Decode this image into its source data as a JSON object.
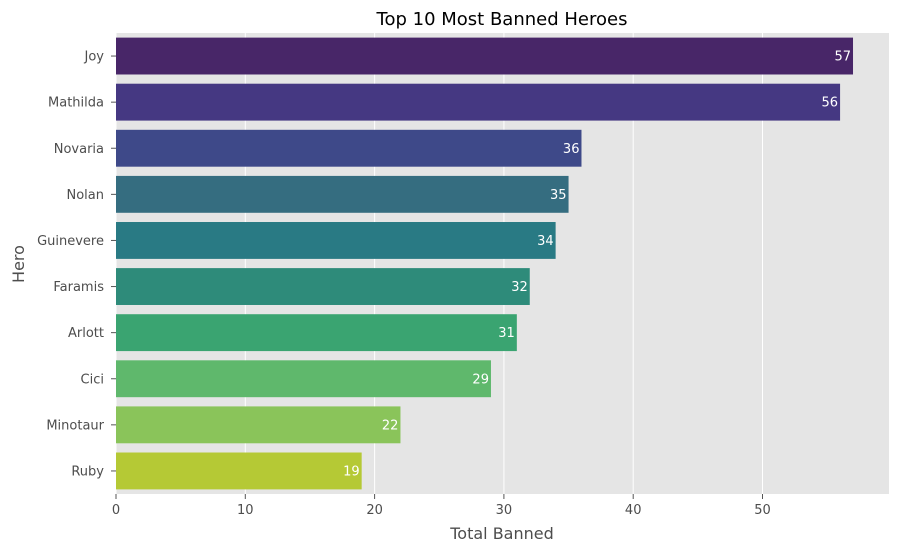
{
  "chart_data": {
    "type": "bar",
    "orientation": "horizontal",
    "title": "Top 10 Most Banned Heroes",
    "xlabel": "Total Banned",
    "ylabel": "Hero",
    "categories": [
      "Joy",
      "Mathilda",
      "Novaria",
      "Nolan",
      "Guinevere",
      "Faramis",
      "Arlott",
      "Cici",
      "Minotaur",
      "Ruby"
    ],
    "values": [
      57,
      56,
      36,
      35,
      34,
      32,
      31,
      29,
      22,
      19
    ],
    "xlim": [
      0,
      60
    ],
    "xticks": [
      0,
      10,
      20,
      30,
      40,
      50
    ],
    "grid": true,
    "colors": [
      "#482668",
      "#453882",
      "#3e4989",
      "#356d80",
      "#297a84",
      "#2e8b7a",
      "#3aa471",
      "#5fb86c",
      "#8ac45a",
      "#b5c935"
    ],
    "background": "#e5e5e5"
  }
}
